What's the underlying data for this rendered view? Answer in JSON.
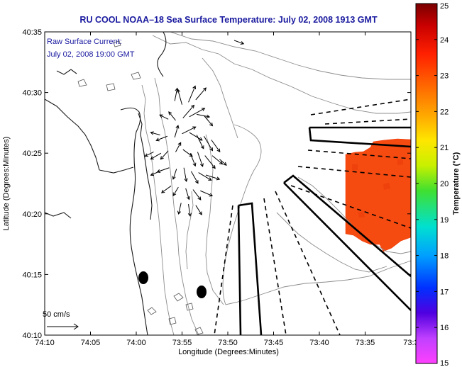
{
  "chart_data": {
    "type": "heatmap",
    "title": "RU COOL  NOAA–18  Sea Surface Temperature:  July 02, 2008 1913 GMT",
    "xlabel": "Longitude (Degrees:Minutes)",
    "ylabel": "Latitude (Degrees:Minutes)",
    "x_ticks": [
      "74:10",
      "74:05",
      "74:00",
      "73:55",
      "73:50",
      "73:45",
      "73:40",
      "73:35",
      "73:3"
    ],
    "y_ticks": [
      "40:35",
      "40:30",
      "40:25",
      "40:20",
      "40:15",
      "40:10"
    ],
    "xlim_minutes": [
      0,
      40
    ],
    "ylim_minutes": [
      0,
      25
    ],
    "legend_text_1": "Raw Surface Current:",
    "legend_text_2": "July 02, 2008 19:00 GMT",
    "scale_label": "50 cm/s",
    "colorbar": {
      "label": "Temperature (°C)",
      "min": 15,
      "max": 25,
      "ticks": [
        "25",
        "24",
        "23",
        "22",
        "21",
        "20",
        "19",
        "18",
        "17",
        "16",
        "15"
      ]
    },
    "sst_patch_value_c": 23.5,
    "current_vectors": [
      {
        "x": 14.2,
        "y": 19.3,
        "u": 0.3,
        "v": 1.5
      },
      {
        "x": 15.0,
        "y": 19.0,
        "u": -0.5,
        "v": 1.8
      },
      {
        "x": 15.7,
        "y": 19.2,
        "u": 0.8,
        "v": 1.9
      },
      {
        "x": 16.5,
        "y": 19.4,
        "u": 1.2,
        "v": 1.4
      },
      {
        "x": 13.5,
        "y": 17.8,
        "u": -1.0,
        "v": 0.5
      },
      {
        "x": 14.3,
        "y": 17.7,
        "u": -0.8,
        "v": 1.0
      },
      {
        "x": 15.1,
        "y": 17.9,
        "u": 1.3,
        "v": 1.5
      },
      {
        "x": 15.8,
        "y": 18.0,
        "u": 1.8,
        "v": 1.0
      },
      {
        "x": 16.6,
        "y": 18.2,
        "u": 1.5,
        "v": -0.3
      },
      {
        "x": 17.4,
        "y": 18.1,
        "u": 1.0,
        "v": -1.2
      },
      {
        "x": 12.6,
        "y": 16.5,
        "u": -1.1,
        "v": 0.3
      },
      {
        "x": 13.4,
        "y": 16.4,
        "u": -1.3,
        "v": -0.5
      },
      {
        "x": 14.2,
        "y": 16.3,
        "u": 0.4,
        "v": 1.4
      },
      {
        "x": 15.0,
        "y": 16.6,
        "u": 1.6,
        "v": 0.8
      },
      {
        "x": 15.8,
        "y": 16.7,
        "u": 1.5,
        "v": -0.9
      },
      {
        "x": 16.6,
        "y": 16.5,
        "u": 0.8,
        "v": -1.6
      },
      {
        "x": 17.4,
        "y": 16.4,
        "u": 1.0,
        "v": -1.7
      },
      {
        "x": 18.2,
        "y": 16.1,
        "u": 1.0,
        "v": -1.4
      },
      {
        "x": 11.9,
        "y": 15.1,
        "u": -1.0,
        "v": -0.5
      },
      {
        "x": 12.7,
        "y": 15.0,
        "u": -1.2,
        "v": -0.7
      },
      {
        "x": 13.5,
        "y": 15.2,
        "u": -0.9,
        "v": -1.0
      },
      {
        "x": 14.3,
        "y": 15.1,
        "u": 0.6,
        "v": 1.1
      },
      {
        "x": 15.1,
        "y": 15.3,
        "u": 1.1,
        "v": -0.8
      },
      {
        "x": 15.9,
        "y": 15.0,
        "u": 0.6,
        "v": -1.5
      },
      {
        "x": 16.7,
        "y": 15.1,
        "u": 0.6,
        "v": -1.7
      },
      {
        "x": 17.5,
        "y": 14.8,
        "u": 1.2,
        "v": -1.5
      },
      {
        "x": 18.3,
        "y": 14.8,
        "u": 1.2,
        "v": -1.0
      },
      {
        "x": 19.1,
        "y": 14.5,
        "u": 0.8,
        "v": -0.7
      },
      {
        "x": 12.8,
        "y": 13.6,
        "u": -1.3,
        "v": -0.6
      },
      {
        "x": 13.6,
        "y": 13.8,
        "u": -1.4,
        "v": -0.5
      },
      {
        "x": 14.4,
        "y": 13.7,
        "u": -0.4,
        "v": -1.2
      },
      {
        "x": 15.2,
        "y": 13.8,
        "u": 0.3,
        "v": -1.6
      },
      {
        "x": 16.0,
        "y": 13.5,
        "u": 0.8,
        "v": -1.4
      },
      {
        "x": 16.8,
        "y": 13.4,
        "u": 1.5,
        "v": -0.9
      },
      {
        "x": 17.6,
        "y": 13.2,
        "u": 1.6,
        "v": -0.5
      },
      {
        "x": 13.8,
        "y": 12.3,
        "u": -1.1,
        "v": -0.8
      },
      {
        "x": 14.6,
        "y": 12.2,
        "u": -0.6,
        "v": -1.0
      },
      {
        "x": 15.4,
        "y": 12.1,
        "u": 0.4,
        "v": -1.3
      },
      {
        "x": 16.2,
        "y": 12.0,
        "u": 0.9,
        "v": -1.2
      },
      {
        "x": 17.0,
        "y": 11.9,
        "u": 1.4,
        "v": -0.6
      },
      {
        "x": 14.9,
        "y": 10.9,
        "u": -0.3,
        "v": -1.3
      },
      {
        "x": 15.7,
        "y": 10.8,
        "u": 0.2,
        "v": -1.4
      },
      {
        "x": 16.5,
        "y": 10.7,
        "u": 0.7,
        "v": -1.1
      },
      {
        "x": 20.7,
        "y": 24.3,
        "u": 1.1,
        "v": -0.4
      }
    ]
  }
}
